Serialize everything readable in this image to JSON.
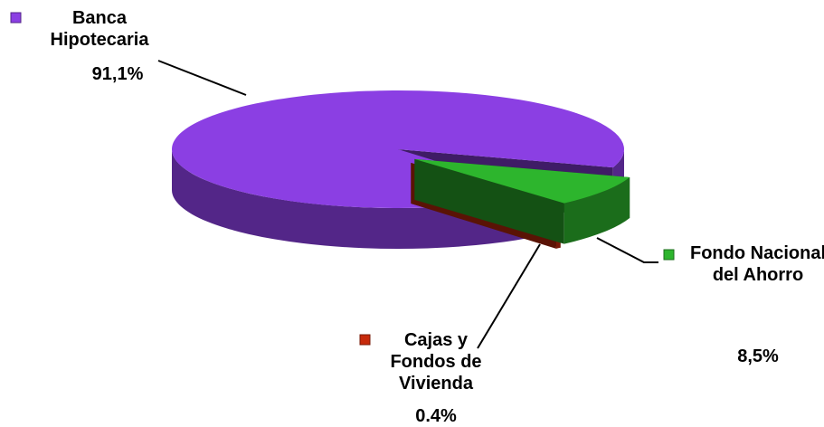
{
  "chart_data": {
    "type": "pie",
    "categories": [
      "Banca Hipotecaria",
      "Fondo Nacional del Ahorro",
      "Cajas y Fondos de Vivienda"
    ],
    "values": [
      91.1,
      8.5,
      0.4
    ],
    "value_labels": [
      "91,1%",
      "8,5%",
      "0.4%"
    ],
    "colors": [
      "#8b3fe3",
      "#2db52d",
      "#c72a0b"
    ]
  }
}
